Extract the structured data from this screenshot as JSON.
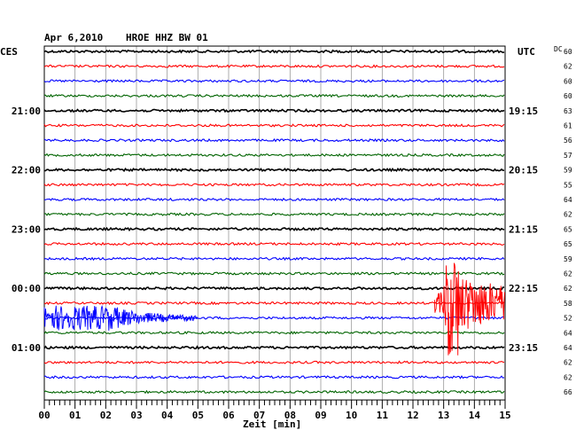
{
  "header": {
    "date": "Apr 6,2010",
    "station": "HROE HHZ BW 01",
    "left_tz": "CES",
    "right_tz": "UTC",
    "dc_label": "DC"
  },
  "chart_data": {
    "type": "line",
    "xlabel": "Zeit [min]",
    "xlim": [
      0,
      15
    ],
    "x_ticks": [
      "00",
      "01",
      "02",
      "03",
      "04",
      "05",
      "06",
      "07",
      "08",
      "09",
      "10",
      "11",
      "12",
      "13",
      "14",
      "15"
    ],
    "left_hour_labels": [
      {
        "row": 4,
        "label": "21:00"
      },
      {
        "row": 8,
        "label": "22:00"
      },
      {
        "row": 12,
        "label": "23:00"
      },
      {
        "row": 16,
        "label": "00:00"
      },
      {
        "row": 20,
        "label": "01:00"
      }
    ],
    "right_hour_labels": [
      {
        "row": 4,
        "label": "19:15"
      },
      {
        "row": 8,
        "label": "20:15"
      },
      {
        "row": 12,
        "label": "21:15"
      },
      {
        "row": 16,
        "label": "22:15"
      },
      {
        "row": 20,
        "label": "23:15"
      }
    ],
    "dc_offsets": [
      "60",
      "62",
      "60",
      "60",
      "63",
      "61",
      "56",
      "57",
      "59",
      "55",
      "64",
      "62",
      "65",
      "65",
      "59",
      "62",
      "62",
      "58",
      "52",
      "64",
      "64",
      "62",
      "62",
      "66"
    ],
    "trace_colors": [
      "#000000",
      "#ff0000",
      "#0000ff",
      "#006400"
    ],
    "events": [
      {
        "row": 18,
        "start_min": 0.0,
        "end_min": 2.0,
        "decay_end_min": 5.0,
        "type": "local"
      },
      {
        "row": 17,
        "start_min": 12.7,
        "end_min": 15.0,
        "type": "teleseismic"
      }
    ]
  }
}
